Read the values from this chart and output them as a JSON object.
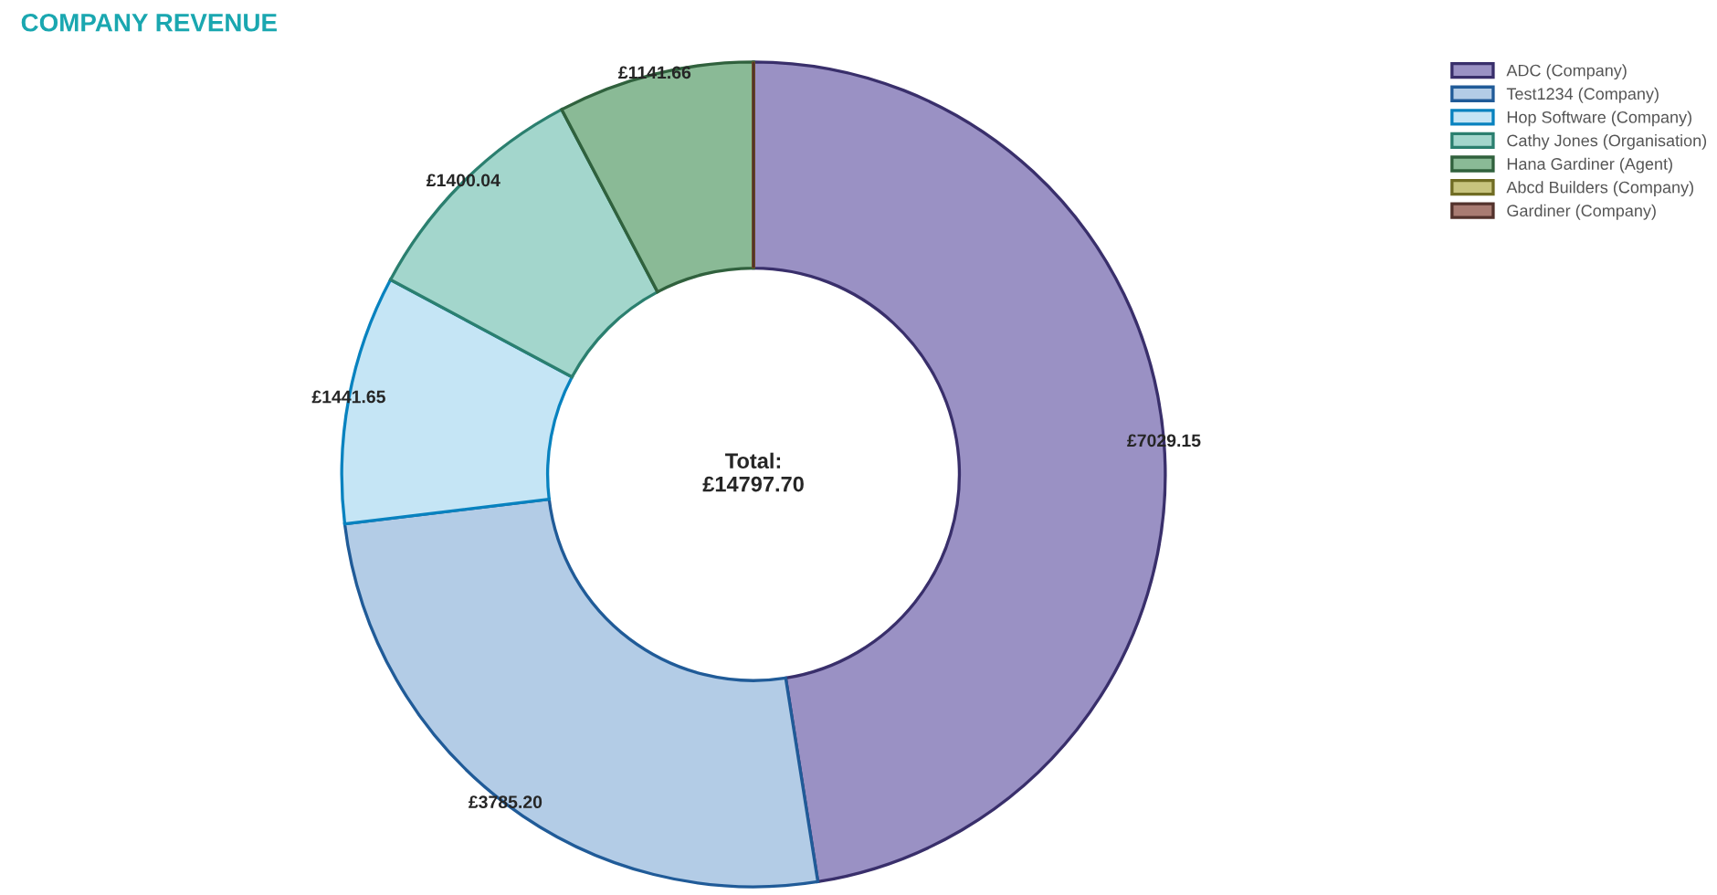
{
  "chart_data": {
    "type": "donut",
    "title": "COMPANY REVENUE",
    "categories": [
      "ADC (Company)",
      "Test1234 (Company)",
      "Hop Software (Company)",
      "Cathy Jones (Organisation)",
      "Hana Gardiner (Agent)",
      "Abcd Builders (Company)",
      null,
      "Gardiner (Company)"
    ],
    "values": [
      7029.15,
      3785.2,
      1441.65,
      1400.04,
      1141.66,
      0,
      0,
      0
    ],
    "value_labels": [
      "£7029.15",
      "£3785.20",
      "£1441.65",
      "£1400.04",
      "£1141.66",
      null,
      null,
      null
    ],
    "colors": [
      "#9a91c4",
      "#b3cce6",
      "#c5e5f5",
      "#a3d6cc",
      "#8aba96",
      "#c8c47e",
      "#f2e3ae",
      "#a87b72"
    ],
    "annotations": [
      "Total:\n£14797.70"
    ],
    "legend": "top right"
  }
}
